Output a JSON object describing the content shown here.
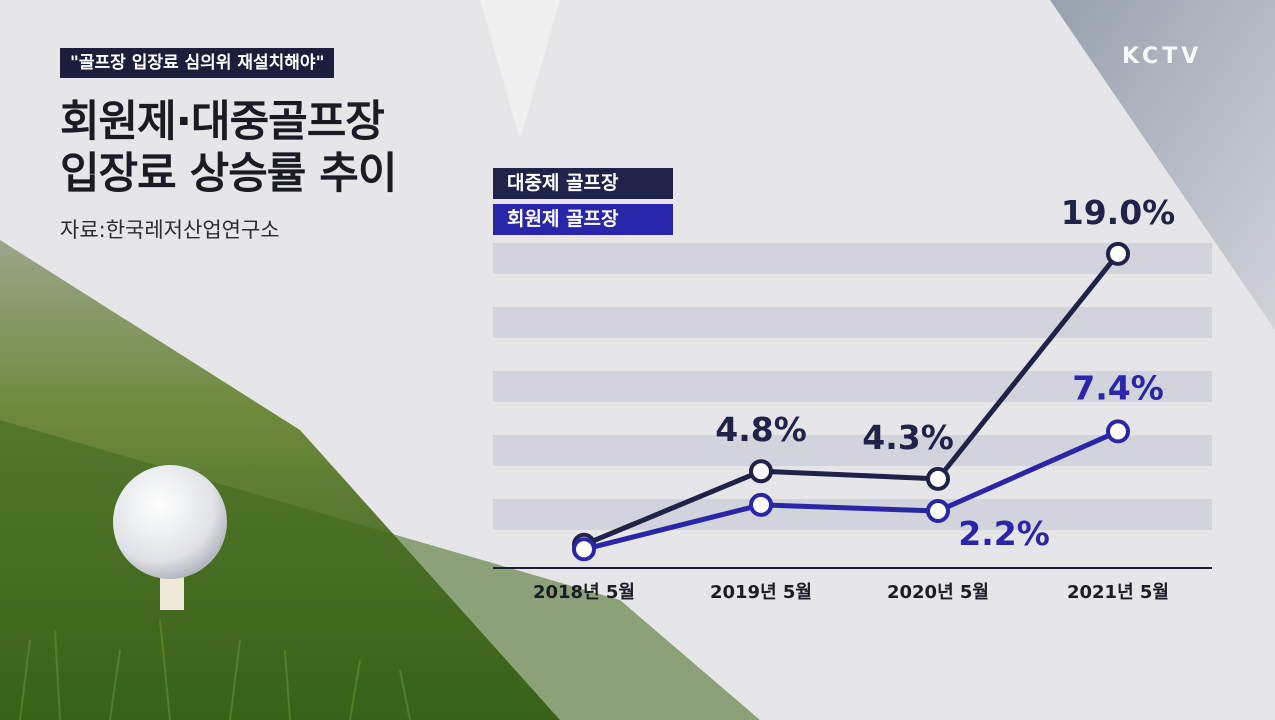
{
  "headline_tag": "\"골프장 입장료 심의위 재설치해야\"",
  "title_line1": "회원제·대중골프장",
  "title_line2": "입장료 상승률 추이",
  "source": "자료:한국레저산업연구소",
  "brand": "KCTV",
  "colors": {
    "public_series": "#1f2249",
    "member_series": "#2a26a8",
    "legend_public_bg": "#1f2249",
    "legend_member_bg": "#2a26a8",
    "label_public": "#1f2249",
    "label_member": "#2a26a8"
  },
  "legend": {
    "public_label": "대중제 골프장",
    "member_label": "회원제 골프장"
  },
  "chart_data": {
    "type": "line",
    "categories": [
      "2018년 5월",
      "2019년 5월",
      "2020년 5월",
      "2021년 5월"
    ],
    "series": [
      {
        "name": "대중제 골프장",
        "values": [
          0,
          4.8,
          4.3,
          19.0
        ],
        "labels": [
          "",
          "4.8%",
          "4.3%",
          "19.0%"
        ]
      },
      {
        "name": "회원제 골프장",
        "values": [
          -0.3,
          2.6,
          2.2,
          7.4
        ],
        "labels": [
          "",
          "",
          "2.2%",
          "7.4%"
        ]
      }
    ],
    "ylim": [
      -1,
      20
    ],
    "grid": true,
    "legend_position": "top-left"
  }
}
